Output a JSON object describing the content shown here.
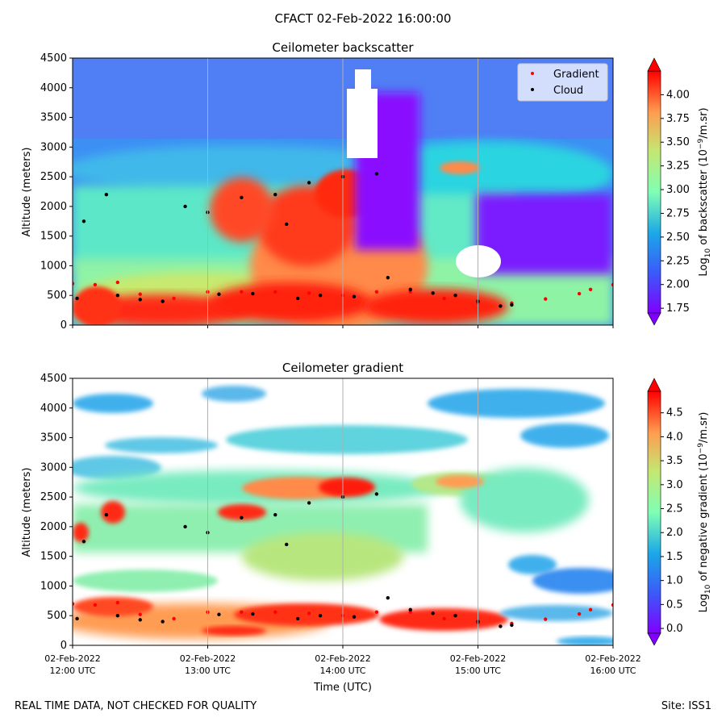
{
  "title": "CFACT 02-Feb-2022 16:00:00",
  "footer": {
    "note": "REAL TIME DATA, NOT CHECKED FOR QUALITY",
    "site": "Site: ISS1"
  },
  "chart_data": [
    {
      "type": "heatmap",
      "title": "Ceilometer backscatter",
      "ylabel": "Altitude (meters)",
      "ylim": [
        0,
        4500
      ],
      "yticks": [
        0,
        500,
        1000,
        1500,
        2000,
        2500,
        3000,
        3500,
        4000,
        4500
      ],
      "xlim": [
        "12:00",
        "16:00"
      ],
      "x_gridlines": [
        "13:00",
        "14:00",
        "15:00"
      ],
      "colormap": "rainbow",
      "colorbar": {
        "label_prefix": "Log",
        "label_sub": "10",
        "label_mid": " of backscatter (10",
        "label_sup": "−9",
        "label_suffix": "/m.sr)",
        "ticks": [
          "4.00",
          "3.75",
          "3.50",
          "3.25",
          "3.00",
          "2.75",
          "2.50",
          "2.25",
          "2.00",
          "1.75"
        ],
        "range": [
          1.7,
          4.25
        ]
      },
      "legend": {
        "placement": "top-right",
        "entries": [
          {
            "name": "Gradient",
            "color": "#ff0000"
          },
          {
            "name": "Cloud",
            "color": "#000000"
          }
        ]
      },
      "layers": [
        {
          "name": "Gradient",
          "color": "#ff0000",
          "points": [
            [
              "12:00",
              700
            ],
            [
              "12:10",
              680
            ],
            [
              "12:20",
              720
            ],
            [
              "12:30",
              520
            ],
            [
              "12:45",
              450
            ],
            [
              "13:00",
              560
            ],
            [
              "13:15",
              560
            ],
            [
              "13:30",
              560
            ],
            [
              "13:45",
              540
            ],
            [
              "14:00",
              500
            ],
            [
              "14:15",
              560
            ],
            [
              "14:30",
              560
            ],
            [
              "14:45",
              450
            ],
            [
              "15:00",
              380
            ],
            [
              "15:15",
              370
            ],
            [
              "15:30",
              440
            ],
            [
              "15:45",
              530
            ],
            [
              "15:50",
              600
            ],
            [
              "16:00",
              680
            ]
          ]
        },
        {
          "name": "Cloud",
          "color": "#000000",
          "points": [
            [
              "12:02",
              450
            ],
            [
              "12:05",
              1750
            ],
            [
              "12:15",
              2200
            ],
            [
              "12:20",
              500
            ],
            [
              "12:30",
              430
            ],
            [
              "12:40",
              400
            ],
            [
              "12:50",
              2000
            ],
            [
              "13:00",
              1900
            ],
            [
              "13:05",
              520
            ],
            [
              "13:15",
              2150
            ],
            [
              "13:20",
              530
            ],
            [
              "13:30",
              2200
            ],
            [
              "13:35",
              1700
            ],
            [
              "13:40",
              450
            ],
            [
              "13:45",
              2400
            ],
            [
              "13:50",
              500
            ],
            [
              "14:00",
              2500
            ],
            [
              "14:05",
              480
            ],
            [
              "14:15",
              2550
            ],
            [
              "14:20",
              800
            ],
            [
              "14:30",
              600
            ],
            [
              "14:40",
              540
            ],
            [
              "14:50",
              500
            ],
            [
              "15:00",
              400
            ],
            [
              "15:10",
              320
            ],
            [
              "15:15",
              340
            ]
          ]
        }
      ]
    },
    {
      "type": "heatmap",
      "title": "Ceilometer gradient",
      "xlabel": "Time (UTC)",
      "ylabel": "Altitude (meters)",
      "ylim": [
        0,
        4500
      ],
      "yticks": [
        0,
        500,
        1000,
        1500,
        2000,
        2500,
        3000,
        3500,
        4000,
        4500
      ],
      "xlim": [
        "12:00",
        "16:00"
      ],
      "xticks": [
        {
          "date": "02-Feb-2022",
          "time": "12:00 UTC"
        },
        {
          "date": "02-Feb-2022",
          "time": "13:00 UTC"
        },
        {
          "date": "02-Feb-2022",
          "time": "14:00 UTC"
        },
        {
          "date": "02-Feb-2022",
          "time": "15:00 UTC"
        },
        {
          "date": "02-Feb-2022",
          "time": "16:00 UTC"
        }
      ],
      "colormap": "rainbow",
      "colorbar": {
        "label_prefix": "Log",
        "label_sub": "10",
        "label_mid": " of negative gradient (10",
        "label_sup": "−9",
        "label_suffix": "/m.sr)",
        "ticks": [
          "4.5",
          "4.0",
          "3.5",
          "3.0",
          "2.5",
          "2.0",
          "1.5",
          "1.0",
          "0.5",
          "0.0"
        ],
        "range": [
          -0.1,
          4.95
        ]
      },
      "layers": [
        {
          "name": "Gradient",
          "color": "#ff0000",
          "points": [
            [
              "12:00",
              700
            ],
            [
              "12:10",
              680
            ],
            [
              "12:20",
              720
            ],
            [
              "12:30",
              520
            ],
            [
              "12:45",
              450
            ],
            [
              "13:00",
              560
            ],
            [
              "13:15",
              560
            ],
            [
              "13:30",
              560
            ],
            [
              "13:45",
              540
            ],
            [
              "14:00",
              500
            ],
            [
              "14:15",
              560
            ],
            [
              "14:30",
              560
            ],
            [
              "14:45",
              450
            ],
            [
              "15:00",
              380
            ],
            [
              "15:15",
              370
            ],
            [
              "15:30",
              440
            ],
            [
              "15:45",
              530
            ],
            [
              "15:50",
              600
            ],
            [
              "16:00",
              680
            ]
          ]
        },
        {
          "name": "Cloud",
          "color": "#000000",
          "points": [
            [
              "12:02",
              450
            ],
            [
              "12:05",
              1750
            ],
            [
              "12:15",
              2200
            ],
            [
              "12:20",
              500
            ],
            [
              "12:30",
              430
            ],
            [
              "12:40",
              400
            ],
            [
              "12:50",
              2000
            ],
            [
              "13:00",
              1900
            ],
            [
              "13:05",
              520
            ],
            [
              "13:15",
              2150
            ],
            [
              "13:20",
              530
            ],
            [
              "13:30",
              2200
            ],
            [
              "13:35",
              1700
            ],
            [
              "13:40",
              450
            ],
            [
              "13:45",
              2400
            ],
            [
              "13:50",
              500
            ],
            [
              "14:00",
              2500
            ],
            [
              "14:05",
              480
            ],
            [
              "14:15",
              2550
            ],
            [
              "14:20",
              800
            ],
            [
              "14:30",
              600
            ],
            [
              "14:40",
              540
            ],
            [
              "14:50",
              500
            ],
            [
              "15:00",
              400
            ],
            [
              "15:10",
              320
            ],
            [
              "15:15",
              340
            ]
          ]
        }
      ]
    }
  ]
}
